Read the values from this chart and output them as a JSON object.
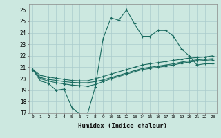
{
  "xlabel": "Humidex (Indice chaleur)",
  "ylabel": "",
  "bg_color": "#cce8e0",
  "grid_color": "#aacccc",
  "line_color": "#1a6b60",
  "xlim": [
    -0.5,
    23.5
  ],
  "ylim": [
    17,
    26.5
  ],
  "xticks": [
    0,
    1,
    2,
    3,
    4,
    5,
    6,
    7,
    8,
    9,
    10,
    11,
    12,
    13,
    14,
    15,
    16,
    17,
    18,
    19,
    20,
    21,
    22,
    23
  ],
  "yticks": [
    17,
    18,
    19,
    20,
    21,
    22,
    23,
    24,
    25,
    26
  ],
  "series": [
    [
      20.8,
      19.8,
      19.6,
      19.0,
      19.1,
      17.5,
      16.9,
      16.9,
      19.3,
      23.5,
      25.3,
      25.1,
      26.0,
      24.8,
      23.7,
      23.7,
      24.2,
      24.2,
      23.7,
      22.6,
      22.0,
      21.2,
      21.3,
      21.3
    ],
    [
      20.8,
      20.3,
      20.15,
      20.05,
      19.95,
      19.85,
      19.82,
      19.82,
      20.0,
      20.2,
      20.4,
      20.6,
      20.8,
      21.0,
      21.2,
      21.3,
      21.4,
      21.5,
      21.6,
      21.7,
      21.8,
      21.85,
      21.9,
      22.0
    ],
    [
      20.8,
      20.1,
      19.95,
      19.85,
      19.75,
      19.68,
      19.65,
      19.65,
      19.75,
      19.9,
      20.1,
      20.3,
      20.5,
      20.7,
      20.9,
      21.0,
      21.1,
      21.2,
      21.3,
      21.45,
      21.55,
      21.65,
      21.7,
      21.75
    ],
    [
      20.8,
      20.0,
      19.8,
      19.65,
      19.55,
      19.45,
      19.4,
      19.35,
      19.5,
      19.75,
      20.0,
      20.2,
      20.4,
      20.6,
      20.8,
      20.9,
      21.0,
      21.1,
      21.2,
      21.35,
      21.45,
      21.55,
      21.6,
      21.65
    ]
  ]
}
